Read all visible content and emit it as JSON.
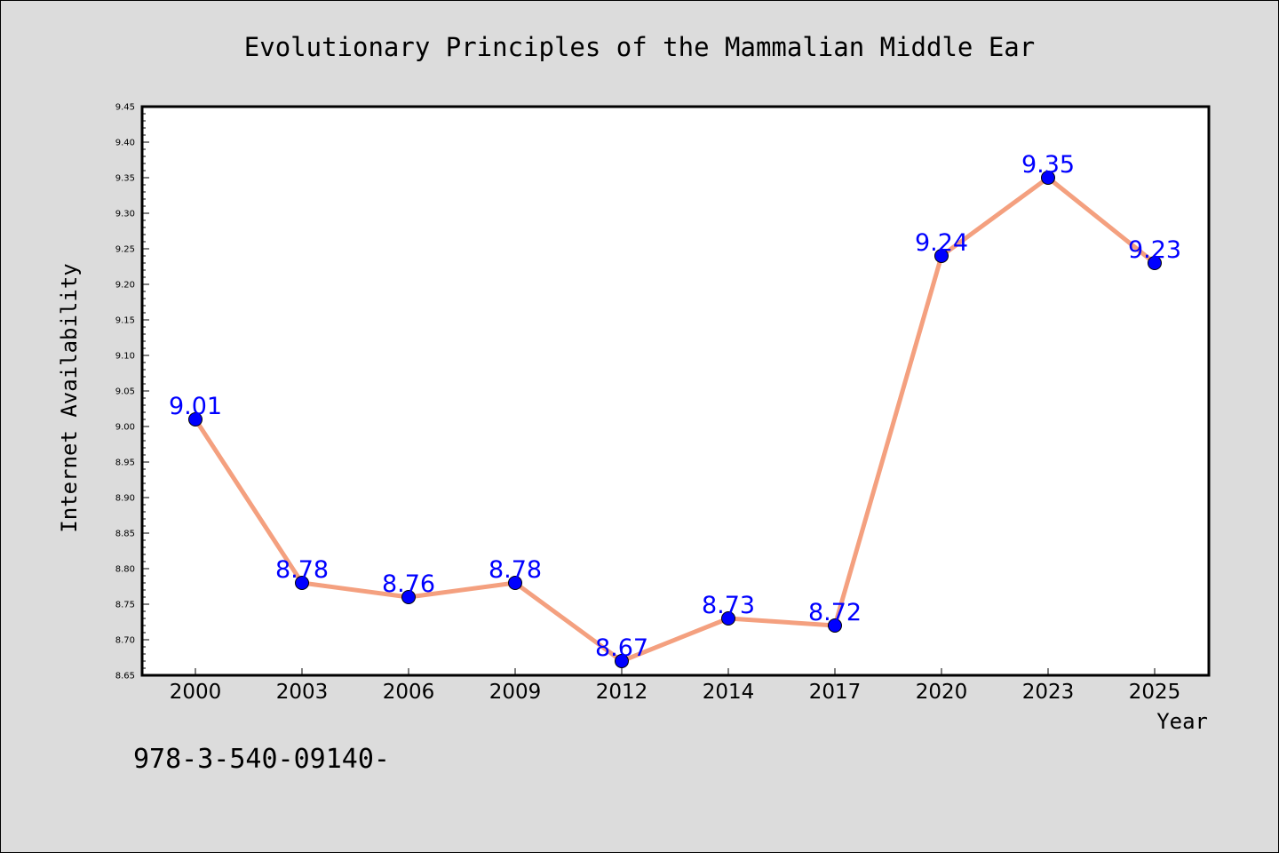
{
  "chart_data": {
    "type": "line",
    "title": "Evolutionary Principles of the Mammalian Middle Ear",
    "xlabel": "Year",
    "ylabel": "Internet Availability",
    "categories": [
      "2000",
      "2003",
      "2006",
      "2009",
      "2012",
      "2014",
      "2017",
      "2020",
      "2023",
      "2025"
    ],
    "values": [
      9.01,
      8.78,
      8.76,
      8.78,
      8.67,
      8.73,
      8.72,
      9.24,
      9.35,
      9.23
    ],
    "data_labels": [
      "9.01",
      "8.78",
      "8.76",
      "8.78",
      "8.67",
      "8.73",
      "8.72",
      "9.24",
      "9.35",
      "9.23"
    ],
    "ylim": [
      8.65,
      9.45
    ],
    "yticks": [
      "8.65",
      "8.70",
      "8.75",
      "8.80",
      "8.85",
      "8.90",
      "8.95",
      "9.00",
      "9.05",
      "9.10",
      "9.15",
      "9.20",
      "9.25",
      "9.30",
      "9.35",
      "9.40",
      "9.45"
    ],
    "grid": false,
    "legend": "none",
    "colors": {
      "line": "#f4a07f",
      "marker": "#0000ff",
      "data_label": "#0000ff",
      "background": "#dcdcdc",
      "plot_background": "#ffffff"
    }
  },
  "footer_text": "978-3-540-09140-"
}
